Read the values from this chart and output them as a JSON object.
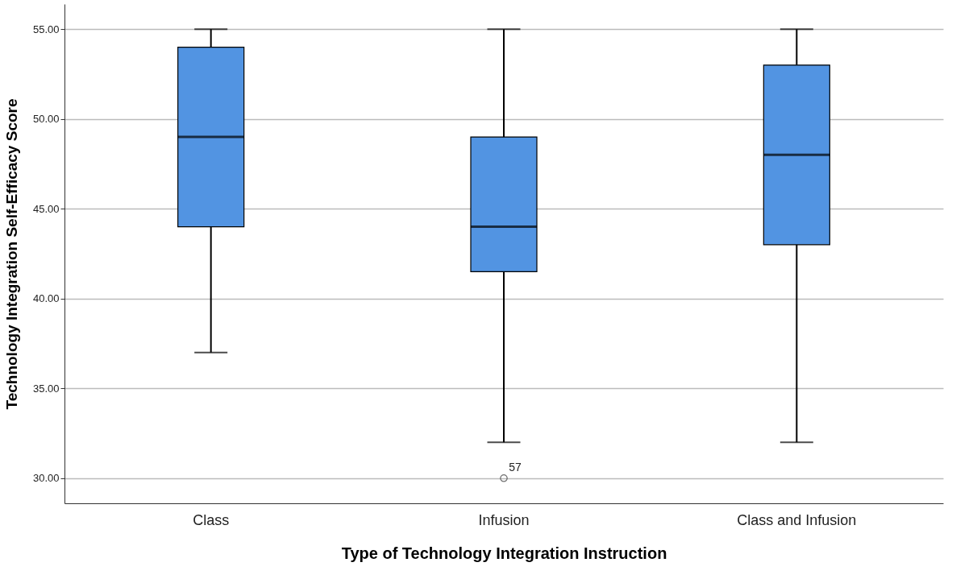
{
  "chart_data": {
    "type": "box",
    "xlabel": "Type of Technology Integration Instruction",
    "ylabel": "Technology Integration Self-Efficacy Score",
    "categories": [
      "Class",
      "Infusion",
      "Class and Infusion"
    ],
    "boxes": [
      {
        "low": 37,
        "q1": 44,
        "median": 49,
        "q3": 54,
        "high": 55
      },
      {
        "low": 32,
        "q1": 41.5,
        "median": 44,
        "q3": 49,
        "high": 55,
        "outliers": [
          30
        ]
      },
      {
        "low": 32,
        "q1": 43,
        "median": 48,
        "q3": 53,
        "high": 55
      }
    ],
    "color": "#5294e2",
    "ylim": [
      28.6,
      56.4
    ],
    "yticks": [
      {
        "value": 30,
        "label": "30.00"
      },
      {
        "value": 35,
        "label": "35.00"
      },
      {
        "value": 40,
        "label": "40.00"
      },
      {
        "value": 45,
        "label": "45.00"
      },
      {
        "value": 50,
        "label": "50.00"
      },
      {
        "value": 55,
        "label": "55.00"
      }
    ],
    "grid": "y",
    "annotations": [
      "57"
    ]
  }
}
